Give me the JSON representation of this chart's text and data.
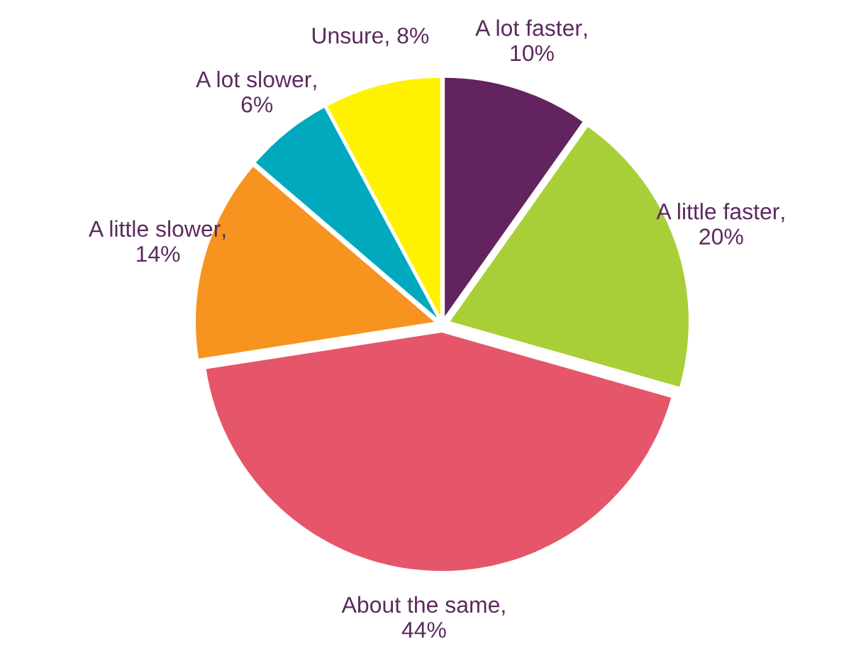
{
  "chart_data": {
    "type": "pie",
    "categories": [
      "A lot faster",
      "A little faster",
      "About the same",
      "A little slower",
      "A lot slower",
      "Unsure"
    ],
    "values": [
      10,
      20,
      44,
      14,
      6,
      8
    ],
    "value_labels": [
      ", 10%",
      ", 20%",
      ", 44%",
      ", 14%",
      ", 6%",
      ", 8%"
    ],
    "colors": [
      "#63235f",
      "#a8cf38",
      "#e5566a",
      "#f6941f",
      "#00a9bd",
      "#fff200"
    ],
    "legend": false
  }
}
